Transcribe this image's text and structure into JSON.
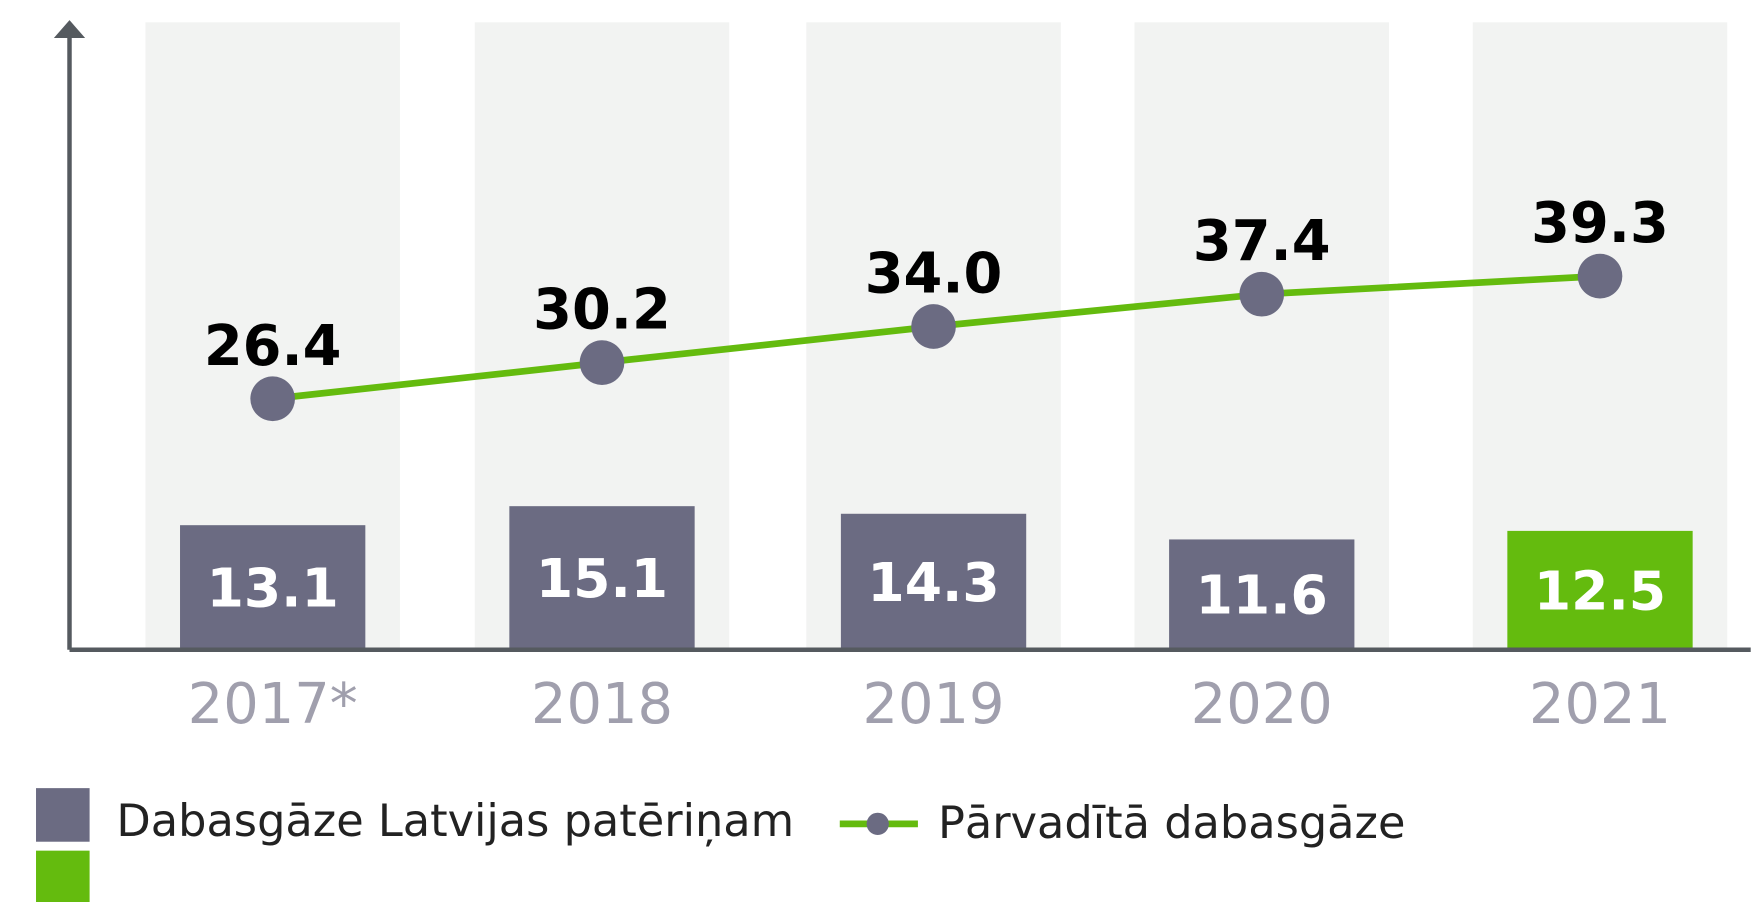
{
  "chart_data": {
    "type": "bar",
    "categories": [
      "2017*",
      "2018",
      "2019",
      "2020",
      "2021"
    ],
    "ylim": [
      0,
      66
    ],
    "series": [
      {
        "name": "Dabasgāze Latvijas patēriņam",
        "type": "bar",
        "color": "#6b6b82",
        "colors": [
          "#6b6b82",
          "#6b6b82",
          "#6b6b82",
          "#6b6b82",
          "#64bb0e"
        ],
        "values": [
          13.1,
          15.1,
          14.3,
          11.6,
          12.5
        ]
      },
      {
        "name": "Pārvadītā dabasgāze",
        "type": "line",
        "color": "#64bb0e",
        "marker_color": "#6b6b82",
        "values": [
          26.4,
          30.2,
          34.0,
          37.4,
          39.3
        ],
        "value_labels": [
          "26.4",
          "30.2",
          "34.0",
          "37.4",
          "39.3"
        ]
      }
    ]
  }
}
